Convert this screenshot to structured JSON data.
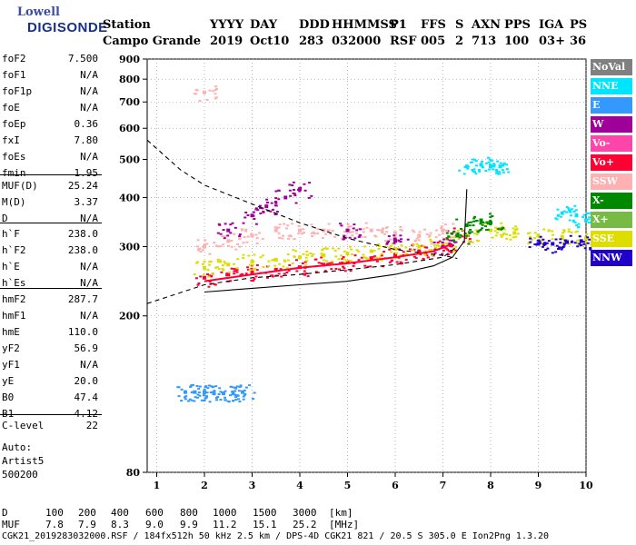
{
  "logo": {
    "line1": "Lowell",
    "line2": "DIGISONDE"
  },
  "header": {
    "labels": [
      "Station",
      "YYYY",
      "DAY",
      "DDD",
      "HHMMSS",
      "P1",
      "FFS",
      "S",
      "AXN",
      "PPS",
      "IGA",
      "PS"
    ],
    "values": [
      "Campo Grande",
      "2019",
      "Oct10",
      "283",
      "032000",
      "RSF",
      "005",
      "2",
      "713",
      "100",
      "03+",
      "36"
    ]
  },
  "params": [
    {
      "label": "foF2",
      "value": "7.500"
    },
    {
      "label": "foF1",
      "value": "N/A"
    },
    {
      "label": "foF1p",
      "value": "N/A"
    },
    {
      "label": "foE",
      "value": "N/A"
    },
    {
      "label": "foEp",
      "value": "0.36"
    },
    {
      "label": "fxI",
      "value": "7.80"
    },
    {
      "label": "foEs",
      "value": "N/A"
    },
    {
      "label": "fmin",
      "value": "1.95"
    },
    {
      "label": "MUF(D)",
      "value": "25.24"
    },
    {
      "label": "M(D)",
      "value": "3.37"
    },
    {
      "label": "D",
      "value": "N/A"
    },
    {
      "label": "h`F",
      "value": "238.0"
    },
    {
      "label": "h`F2",
      "value": "238.0"
    },
    {
      "label": "h`E",
      "value": "N/A"
    },
    {
      "label": "h`Es",
      "value": "N/A"
    },
    {
      "label": "hmF2",
      "value": "287.7"
    },
    {
      "label": "hmF1",
      "value": "N/A"
    },
    {
      "label": "hmE",
      "value": "110.0"
    },
    {
      "label": "yF2",
      "value": "56.9"
    },
    {
      "label": "yF1",
      "value": "N/A"
    },
    {
      "label": "yE",
      "value": "20.0"
    },
    {
      "label": "B0",
      "value": "47.4"
    },
    {
      "label": "B1",
      "value": "4.12"
    },
    {
      "label": "C-level",
      "value": "22"
    }
  ],
  "auto": {
    "line1": "Auto:",
    "line2": "Artist5",
    "line3": "500200"
  },
  "legend": [
    {
      "label": "NoVal",
      "color": "#808080"
    },
    {
      "label": "NNE",
      "color": "#00e5ff"
    },
    {
      "label": "E",
      "color": "#3399ff"
    },
    {
      "label": "W",
      "color": "#a0009a"
    },
    {
      "label": "Vo-",
      "color": "#ff44aa"
    },
    {
      "label": "Vo+",
      "color": "#ff0033"
    },
    {
      "label": "SSW",
      "color": "#ffb0b0"
    },
    {
      "label": "X-",
      "color": "#008800"
    },
    {
      "label": "X+",
      "color": "#77bb44"
    },
    {
      "label": "SSE",
      "color": "#dddd00"
    },
    {
      "label": "NNW",
      "color": "#2200cc"
    }
  ],
  "bottom": {
    "d_label": "D",
    "d_values": [
      "100",
      "200",
      "400",
      "600",
      "800",
      "1000",
      "1500",
      "3000"
    ],
    "d_unit": "[km]",
    "muf_label": "MUF",
    "muf_values": [
      "7.8",
      "7.9",
      "8.3",
      "9.0",
      "9.9",
      "11.2",
      "15.1",
      "25.2"
    ],
    "muf_unit": "[MHz]"
  },
  "footer": "CGK21_2019283032000.RSF / 184fx512h 50 kHz 2.5 km / DPS-4D CGK21 821 / 20.5 S 305.0 E Ion2Png 1.3.20",
  "chart_data": {
    "type": "scatter",
    "title": "",
    "xlabel": "",
    "ylabel": "",
    "xlim": [
      0.8,
      10
    ],
    "ylim": [
      80,
      900
    ],
    "y_scale": "log",
    "xticks": [
      1,
      2,
      3,
      4,
      5,
      6,
      7,
      8,
      9,
      10
    ],
    "yticks": [
      80,
      200,
      300,
      400,
      500,
      600,
      700,
      800,
      900
    ],
    "grid": true,
    "series": [
      {
        "name": "Vo+",
        "color": "#ff0033",
        "x": [
          2.0,
          2.5,
          3.0,
          3.5,
          4.0,
          4.5,
          5.0,
          5.5,
          6.0,
          6.5,
          7.0,
          7.3
        ],
        "y": [
          250,
          255,
          258,
          262,
          266,
          270,
          274,
          280,
          286,
          292,
          300,
          320
        ]
      },
      {
        "name": "SSE",
        "color": "#dddd00",
        "x": [
          2.0,
          2.5,
          3.0,
          3.5,
          4.0,
          4.5,
          5.0,
          5.5,
          6.0,
          6.5,
          7.0,
          7.5,
          8.0,
          8.5,
          9.0,
          9.5,
          10.0
        ],
        "y": [
          265,
          270,
          275,
          278,
          282,
          285,
          288,
          292,
          296,
          300,
          305,
          320,
          330,
          325,
          320,
          318,
          315
        ]
      },
      {
        "name": "SSW",
        "color": "#ffb0b0",
        "x": [
          2.0,
          2.5,
          3.0,
          3.5,
          4.0,
          4.5,
          5.0,
          5.5,
          6.0,
          6.5,
          7.0,
          2.0
        ],
        "y": [
          300,
          310,
          320,
          330,
          330,
          330,
          330,
          330,
          325,
          320,
          330,
          740
        ]
      },
      {
        "name": "W",
        "color": "#a0009a",
        "x": [
          2.5,
          3.0,
          3.3,
          3.7,
          4.0,
          5.0,
          6.0,
          7.0
        ],
        "y": [
          330,
          360,
          380,
          400,
          420,
          330,
          310,
          300
        ]
      },
      {
        "name": "NNE",
        "color": "#00e5ff",
        "x": [
          7.5,
          7.8,
          8.0,
          8.2,
          9.5,
          9.8,
          10.0
        ],
        "y": [
          480,
          485,
          480,
          480,
          365,
          360,
          350
        ]
      },
      {
        "name": "E",
        "color": "#3399ff",
        "x": [
          1.6,
          1.8,
          2.0,
          2.2,
          2.4,
          2.6,
          2.8
        ],
        "y": [
          128,
          128,
          128,
          127,
          127,
          127,
          128
        ]
      },
      {
        "name": "X-",
        "color": "#008800",
        "x": [
          7.3,
          7.5,
          7.8,
          8.0
        ],
        "y": [
          320,
          340,
          350,
          345
        ]
      },
      {
        "name": "NNW",
        "color": "#2200cc",
        "x": [
          9.0,
          9.3,
          9.6,
          9.9
        ],
        "y": [
          305,
          305,
          308,
          310
        ]
      }
    ],
    "curves": [
      {
        "style": "dashed",
        "x": [
          0.8,
          1.5,
          2.0,
          3.0,
          4.0,
          5.0,
          6.0,
          7.0,
          7.3
        ],
        "y": [
          560,
          470,
          430,
          385,
          345,
          315,
          295,
          285,
          280
        ]
      },
      {
        "style": "dashed",
        "x": [
          0.8,
          2.0,
          3.0,
          4.0,
          5.0,
          6.0,
          7.0,
          7.3
        ],
        "y": [
          215,
          240,
          250,
          255,
          262,
          270,
          282,
          300
        ]
      },
      {
        "style": "solid",
        "x": [
          2.0,
          3.0,
          4.0,
          5.0,
          6.0,
          6.8,
          7.2,
          7.45,
          7.5
        ],
        "y": [
          230,
          235,
          240,
          245,
          255,
          268,
          282,
          310,
          420
        ]
      },
      {
        "style": "solid",
        "color": "#ff0033",
        "x": [
          2.0,
          3.0,
          4.0,
          5.0,
          6.0,
          6.8,
          7.2
        ],
        "y": [
          245,
          255,
          265,
          272,
          282,
          292,
          305
        ]
      }
    ]
  }
}
